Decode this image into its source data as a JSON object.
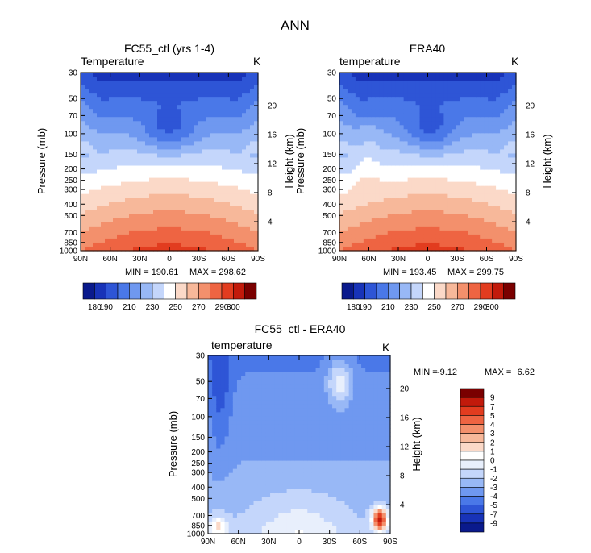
{
  "figure": {
    "title": "ANN"
  },
  "colors": {
    "temp_scale": [
      "#0a1a8c",
      "#1833b8",
      "#2e55d6",
      "#4a78e8",
      "#6f98f0",
      "#98b8f6",
      "#c4d6fb",
      "#ffffff",
      "#fbd9c8",
      "#f7b89a",
      "#f3906c",
      "#ee6442",
      "#e23c1f",
      "#c21a0b",
      "#7a0000"
    ],
    "diff_scale": [
      "#0a1a8c",
      "#1833b8",
      "#2e55d6",
      "#4a78e8",
      "#6f98f0",
      "#98b8f6",
      "#c4d6fb",
      "#e8effc",
      "#ffffff",
      "#fbd9c8",
      "#f7b89a",
      "#f3906c",
      "#ee6442",
      "#e23c1f",
      "#c21a0b",
      "#7a0000"
    ]
  },
  "chart_data": [
    {
      "type": "heatmap",
      "title": "FC55_ctl (yrs 1-4)",
      "variable": "Temperature",
      "units": "K",
      "ylabel": "Pressure (mb)",
      "ylabel_right": "Height (km)",
      "x_ticks": [
        "90N",
        "60N",
        "30N",
        "0",
        "30S",
        "60S",
        "90S"
      ],
      "x_values": [
        90,
        60,
        30,
        0,
        -30,
        -60,
        -90
      ],
      "y_ticks": [
        "30",
        "50",
        "70",
        "100",
        "150",
        "200",
        "250",
        "300",
        "400",
        "500",
        "700",
        "850",
        "1000"
      ],
      "y_values": [
        30,
        50,
        70,
        100,
        150,
        200,
        250,
        300,
        400,
        500,
        700,
        850,
        1000
      ],
      "right_ticks": [
        "20",
        "16",
        "12",
        "8",
        "4"
      ],
      "right_values": [
        20,
        16,
        12,
        8,
        4
      ],
      "yscale": "log",
      "min_label": "MIN = 190.61",
      "max_label": "MAX = 298.62",
      "min": 190.61,
      "max": 298.62,
      "levels": [
        180,
        190,
        200,
        210,
        220,
        230,
        240,
        250,
        260,
        270,
        280,
        290,
        300
      ],
      "colorbar_labels": [
        "180",
        "190",
        "210",
        "230",
        "250",
        "270",
        "290",
        "300"
      ],
      "colorbar_values": [
        180,
        190,
        210,
        230,
        250,
        270,
        290,
        300
      ],
      "colorbar_orientation": "horizontal"
    },
    {
      "type": "heatmap",
      "title": "ERA40",
      "variable": "temperature",
      "units": "K",
      "ylabel": "Pressure (mb)",
      "ylabel_right": "Height (km)",
      "x_ticks": [
        "90N",
        "60N",
        "30N",
        "0",
        "30S",
        "60S",
        "90S"
      ],
      "x_values": [
        90,
        60,
        30,
        0,
        -30,
        -60,
        -90
      ],
      "y_ticks": [
        "30",
        "50",
        "70",
        "100",
        "150",
        "200",
        "250",
        "300",
        "400",
        "500",
        "700",
        "850",
        "1000"
      ],
      "y_values": [
        30,
        50,
        70,
        100,
        150,
        200,
        250,
        300,
        400,
        500,
        700,
        850,
        1000
      ],
      "right_ticks": [
        "20",
        "16",
        "12",
        "8",
        "4"
      ],
      "right_values": [
        20,
        16,
        12,
        8,
        4
      ],
      "yscale": "log",
      "min_label": "MIN = 193.45",
      "max_label": "MAX = 299.75",
      "min": 193.45,
      "max": 299.75,
      "levels": [
        180,
        190,
        200,
        210,
        220,
        230,
        240,
        250,
        260,
        270,
        280,
        290,
        300
      ],
      "colorbar_labels": [
        "180",
        "190",
        "210",
        "230",
        "250",
        "270",
        "290",
        "300"
      ],
      "colorbar_values": [
        180,
        190,
        210,
        230,
        250,
        270,
        290,
        300
      ],
      "colorbar_orientation": "horizontal"
    },
    {
      "type": "heatmap",
      "title": "FC55_ctl - ERA40",
      "variable": "temperature",
      "units": "K",
      "ylabel": "Pressure (mb)",
      "ylabel_right": "Height (km)",
      "x_ticks": [
        "90N",
        "60N",
        "30N",
        "0",
        "30S",
        "60S",
        "90S"
      ],
      "x_values": [
        90,
        60,
        30,
        0,
        -30,
        -60,
        -90
      ],
      "y_ticks": [
        "30",
        "50",
        "70",
        "100",
        "150",
        "200",
        "250",
        "300",
        "400",
        "500",
        "700",
        "850",
        "1000"
      ],
      "y_values": [
        30,
        50,
        70,
        100,
        150,
        200,
        250,
        300,
        400,
        500,
        700,
        850,
        1000
      ],
      "right_ticks": [
        "20",
        "16",
        "12",
        "8",
        "4"
      ],
      "right_values": [
        20,
        16,
        12,
        8,
        4
      ],
      "yscale": "log",
      "min_label": "MIN =",
      "min_value": "-9.12",
      "max_label": "MAX =",
      "max_value": "6.62",
      "min": -9.12,
      "max": 6.62,
      "levels": [
        -9,
        -7,
        -5,
        -4,
        -3,
        -2,
        -1,
        0,
        1,
        2,
        3,
        4,
        5,
        7,
        9
      ],
      "colorbar_labels": [
        "9",
        "7",
        "5",
        "4",
        "3",
        "2",
        "1",
        "0",
        "-1",
        "-2",
        "-3",
        "-4",
        "-5",
        "-7",
        "-9"
      ],
      "colorbar_values": [
        9,
        7,
        5,
        4,
        3,
        2,
        1,
        0,
        -1,
        -2,
        -3,
        -4,
        -5,
        -7,
        -9
      ],
      "colorbar_orientation": "vertical"
    }
  ]
}
